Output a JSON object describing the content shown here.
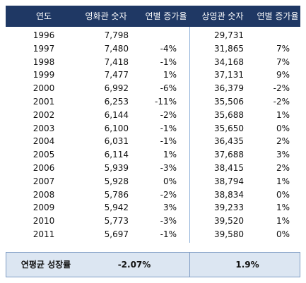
{
  "table": {
    "header": [
      "연도",
      "영화관 숫자",
      "연별 증가율",
      "상영관 숫자",
      "연별 증가율"
    ],
    "rows": [
      [
        "1996",
        "7,798",
        null,
        "29,731",
        null
      ],
      [
        "1997",
        "7,480",
        "-4%",
        "31,865",
        "7%"
      ],
      [
        "1998",
        "7,418",
        "-1%",
        "34,168",
        "7%"
      ],
      [
        "1999",
        "7,477",
        "1%",
        "37,131",
        "9%"
      ],
      [
        "2000",
        "6,992",
        "-6%",
        "36,379",
        "-2%"
      ],
      [
        "2001",
        "6,253",
        "-11%",
        "35,506",
        "-2%"
      ],
      [
        "2002",
        "6,144",
        "-2%",
        "35,688",
        "1%"
      ],
      [
        "2003",
        "6,100",
        "-1%",
        "35,650",
        "0%"
      ],
      [
        "2004",
        "6,031",
        "-1%",
        "36,435",
        "2%"
      ],
      [
        "2005",
        "6,114",
        "1%",
        "37,688",
        "3%"
      ],
      [
        "2006",
        "5,939",
        "-3%",
        "38,415",
        "2%"
      ],
      [
        "2007",
        "5,928",
        "0%",
        "38,794",
        "1%"
      ],
      [
        "2008",
        "5,786",
        "-2%",
        "38,834",
        "0%"
      ],
      [
        "2009",
        "5,942",
        "3%",
        "39,233",
        "1%"
      ],
      [
        "2010",
        "5,773",
        "-3%",
        "39,520",
        "1%"
      ],
      [
        "2011",
        "5,697",
        "-1%",
        "39,580",
        "0%"
      ]
    ]
  },
  "footer": {
    "label": "연평균 성장률",
    "values": [
      "-2.07%",
      "1.9%"
    ]
  }
}
